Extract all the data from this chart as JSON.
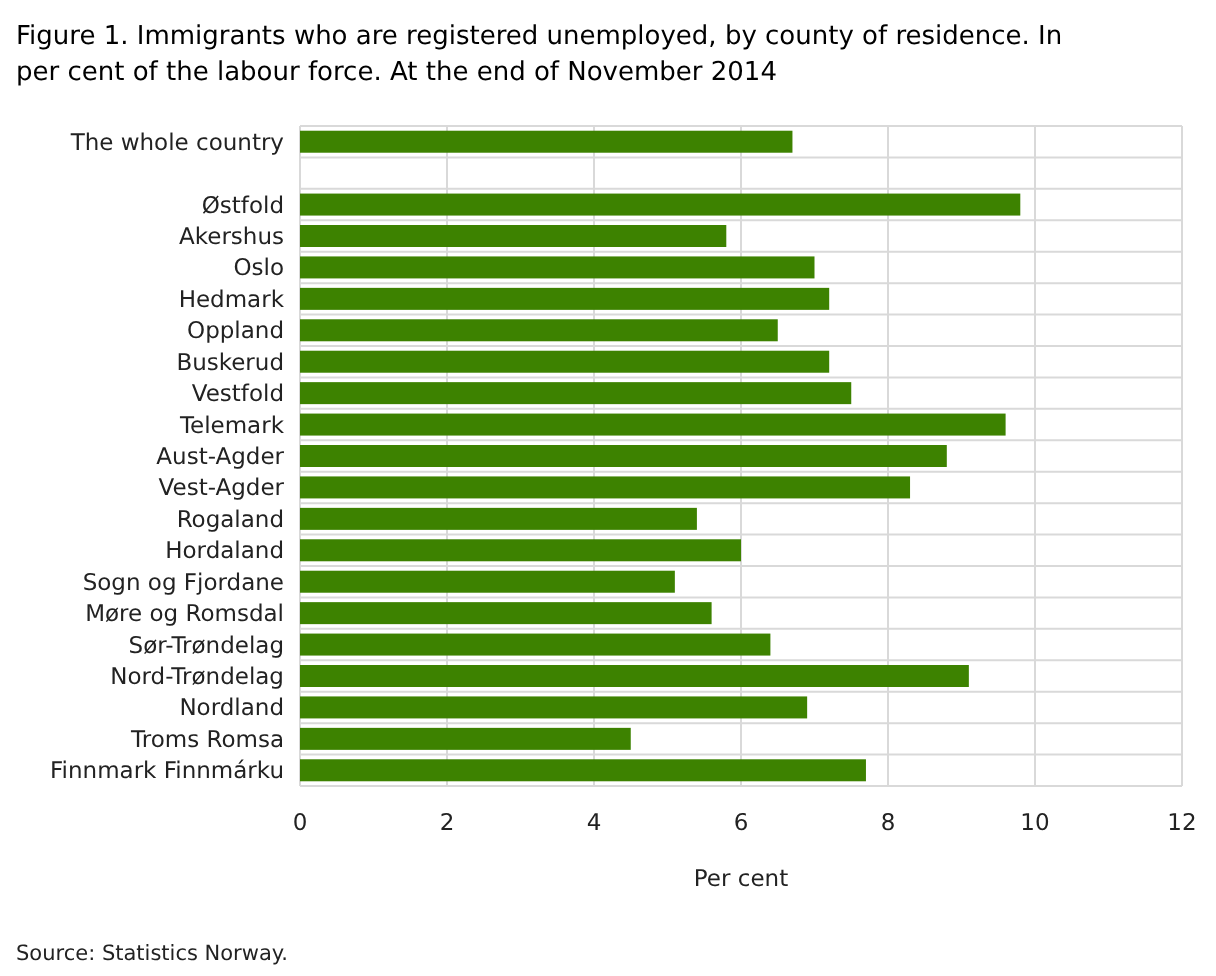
{
  "chart_data": {
    "type": "bar",
    "orientation": "horizontal",
    "title": "Figure 1. Immigrants who are registered unemployed, by county of residence. In per cent of the labour force. At the end of  November 2014",
    "categories": [
      "The whole country",
      null,
      "Østfold",
      "Akershus",
      "Oslo",
      "Hedmark",
      "Oppland",
      "Buskerud",
      "Vestfold",
      "Telemark",
      "Aust-Agder",
      "Vest-Agder",
      "Rogaland",
      "Hordaland",
      "Sogn og Fjordane",
      "Møre og Romsdal",
      "Sør-Trøndelag",
      "Nord-Trøndelag",
      "Nordland",
      "Troms Romsa",
      "Finnmark Finnmárku"
    ],
    "values": [
      6.7,
      null,
      9.8,
      5.8,
      7.0,
      7.2,
      6.5,
      7.2,
      7.5,
      9.6,
      8.8,
      8.3,
      5.4,
      6.0,
      5.1,
      5.6,
      6.4,
      9.1,
      6.9,
      4.5,
      7.7
    ],
    "color": "#3d8200",
    "xlabel": "Per cent",
    "xlim": [
      0,
      12
    ],
    "xticks": [
      0,
      2,
      4,
      6,
      8,
      10,
      12
    ],
    "grid": true,
    "annotations": [
      "Source: Statistics Norway."
    ]
  }
}
